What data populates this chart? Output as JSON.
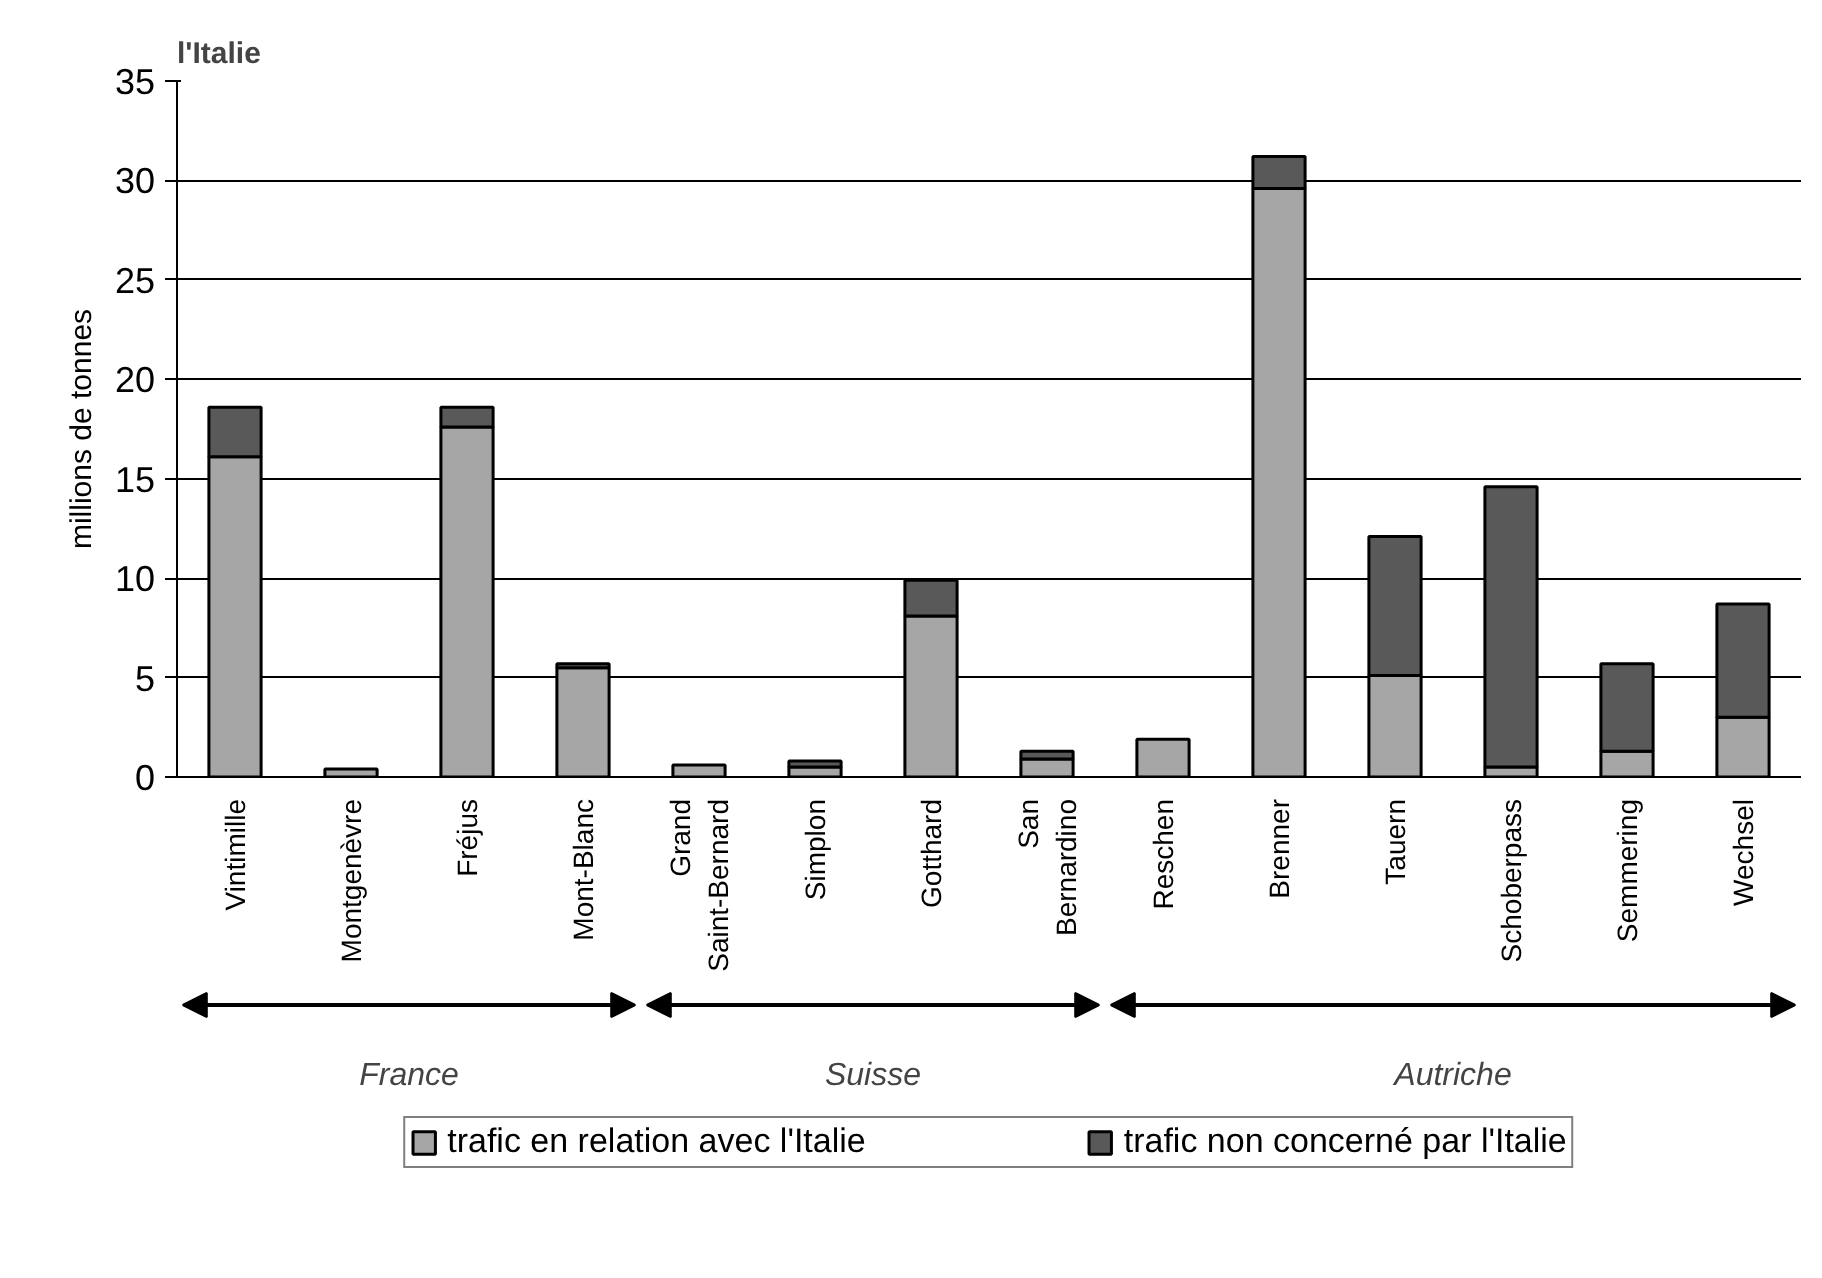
{
  "chart_data": {
    "type": "bar",
    "stacked": true,
    "title": "l'Italie",
    "ylabel": "millions de tonnes",
    "categories": [
      "Vintimille",
      "Montgenèvre",
      "Fréjus",
      "Mont-Blanc",
      "Grand\nSaint-Bernard",
      "Simplon",
      "Gotthard",
      "San\nBernardino",
      "Reschen",
      "Brenner",
      "Tauern",
      "Schoberpass",
      "Semmering",
      "Wechsel"
    ],
    "series": [
      {
        "name": "trafic en relation avec l'Italie",
        "color": "#a6a6a6",
        "values": [
          16.1,
          0.4,
          17.6,
          5.5,
          0.6,
          0.5,
          8.1,
          0.9,
          1.9,
          29.6,
          5.1,
          0.5,
          1.3,
          3.0
        ]
      },
      {
        "name": "trafic non concerné par l'Italie",
        "color": "#595959",
        "values": [
          2.5,
          null,
          1.0,
          0.2,
          null,
          0.3,
          1.8,
          0.4,
          null,
          1.6,
          7.0,
          14.1,
          4.4,
          5.7
        ]
      }
    ],
    "ylim": [
      0,
      35
    ],
    "yticks": [
      0,
      5,
      10,
      15,
      20,
      25,
      30,
      35
    ],
    "grid": "y",
    "legend": "bottom",
    "annotations": [
      "France",
      "Suisse",
      "Autriche"
    ]
  }
}
